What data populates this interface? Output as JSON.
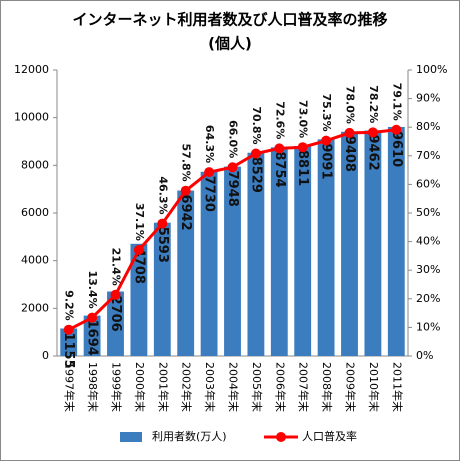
{
  "chart_data": {
    "type": "bar_line",
    "title": "インターネット利用者数及び人口普及率の推移",
    "subtitle": "(個人)",
    "categories": [
      "1997年末",
      "1998年末",
      "1999年末",
      "2000年末",
      "2001年末",
      "2002年末",
      "2003年末",
      "2004年末",
      "2005年末",
      "2006年末",
      "2007年末",
      "2008年末",
      "2009年末",
      "2010年末",
      "2011年末"
    ],
    "series": [
      {
        "name": "利用者数(万人)",
        "kind": "bar",
        "color": "#3c7dbf",
        "values": [
          1155,
          1694,
          2706,
          4708,
          5593,
          6942,
          7730,
          7948,
          8529,
          8754,
          8811,
          9091,
          9408,
          9462,
          9610
        ]
      },
      {
        "name": "人口普及率",
        "kind": "line",
        "axis": "y2",
        "color": "#ff0000",
        "values": [
          9.2,
          13.4,
          21.4,
          37.1,
          46.3,
          57.8,
          64.3,
          66.0,
          70.8,
          72.6,
          73.0,
          75.3,
          78.0,
          78.2,
          79.1
        ],
        "value_labels": [
          "9.2%",
          "13.4%",
          "21.4%",
          "37.1%",
          "46.3%",
          "57.8%",
          "64.3%",
          "66.0%",
          "70.8%",
          "72.6%",
          "73.0%",
          "75.3%",
          "78.0%",
          "78.2%",
          "79.1%"
        ]
      }
    ],
    "ylim": [
      0,
      12000
    ],
    "yticks": [
      0,
      2000,
      4000,
      6000,
      8000,
      10000,
      12000
    ],
    "y2lim": [
      0,
      100
    ],
    "y2ticks": [
      {
        "value": 0,
        "label": "0%"
      },
      {
        "value": 10,
        "label": "10%"
      },
      {
        "value": 20,
        "label": "20%"
      },
      {
        "value": 30,
        "label": "30%"
      },
      {
        "value": 40,
        "label": "40%"
      },
      {
        "value": 50,
        "label": "50%"
      },
      {
        "value": 60,
        "label": "60%"
      },
      {
        "value": 70,
        "label": "70%"
      },
      {
        "value": 80,
        "label": "80%"
      },
      {
        "value": 90,
        "label": "90%"
      },
      {
        "value": 100,
        "label": "100%"
      }
    ],
    "grid": false,
    "legend": "bottom"
  }
}
